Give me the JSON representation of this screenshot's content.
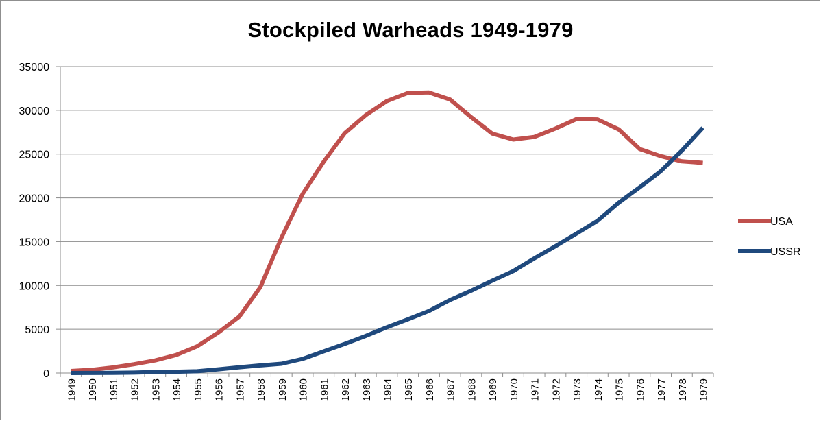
{
  "chart_data": {
    "type": "line",
    "title": "Stockpiled Warheads 1949-1979",
    "xlabel": "",
    "ylabel": "",
    "ylim": [
      0,
      35000
    ],
    "y_ticks": [
      0,
      5000,
      10000,
      15000,
      20000,
      25000,
      30000,
      35000
    ],
    "grid": true,
    "legend_position": "right",
    "categories": [
      "1949",
      "1950",
      "1951",
      "1952",
      "1953",
      "1954",
      "1955",
      "1956",
      "1957",
      "1958",
      "1959",
      "1960",
      "1961",
      "1962",
      "1963",
      "1964",
      "1965",
      "1966",
      "1967",
      "1968",
      "1969",
      "1970",
      "1971",
      "1972",
      "1973",
      "1974",
      "1975",
      "1976",
      "1977",
      "1978",
      "1979"
    ],
    "series": [
      {
        "name": "USA",
        "color": "#c0504d",
        "values": [
          235,
          369,
          640,
          1005,
          1436,
          2063,
          3057,
          4618,
          6444,
          9822,
          15468,
          20434,
          24126,
          27387,
          29459,
          31056,
          31982,
          32040,
          31233,
          29224,
          27342,
          26662,
          26956,
          27912,
          28999,
          28965,
          27826,
          25579,
          24770,
          24170,
          24000
        ]
      },
      {
        "name": "USSR",
        "color": "#1f497d",
        "values": [
          1,
          5,
          25,
          50,
          120,
          150,
          200,
          426,
          660,
          869,
          1060,
          1605,
          2471,
          3322,
          4238,
          5221,
          6129,
          7089,
          8339,
          9399,
          10538,
          11643,
          13092,
          14478,
          15915,
          17385,
          19443,
          21205,
          23044,
          25393,
          28000
        ]
      }
    ]
  }
}
